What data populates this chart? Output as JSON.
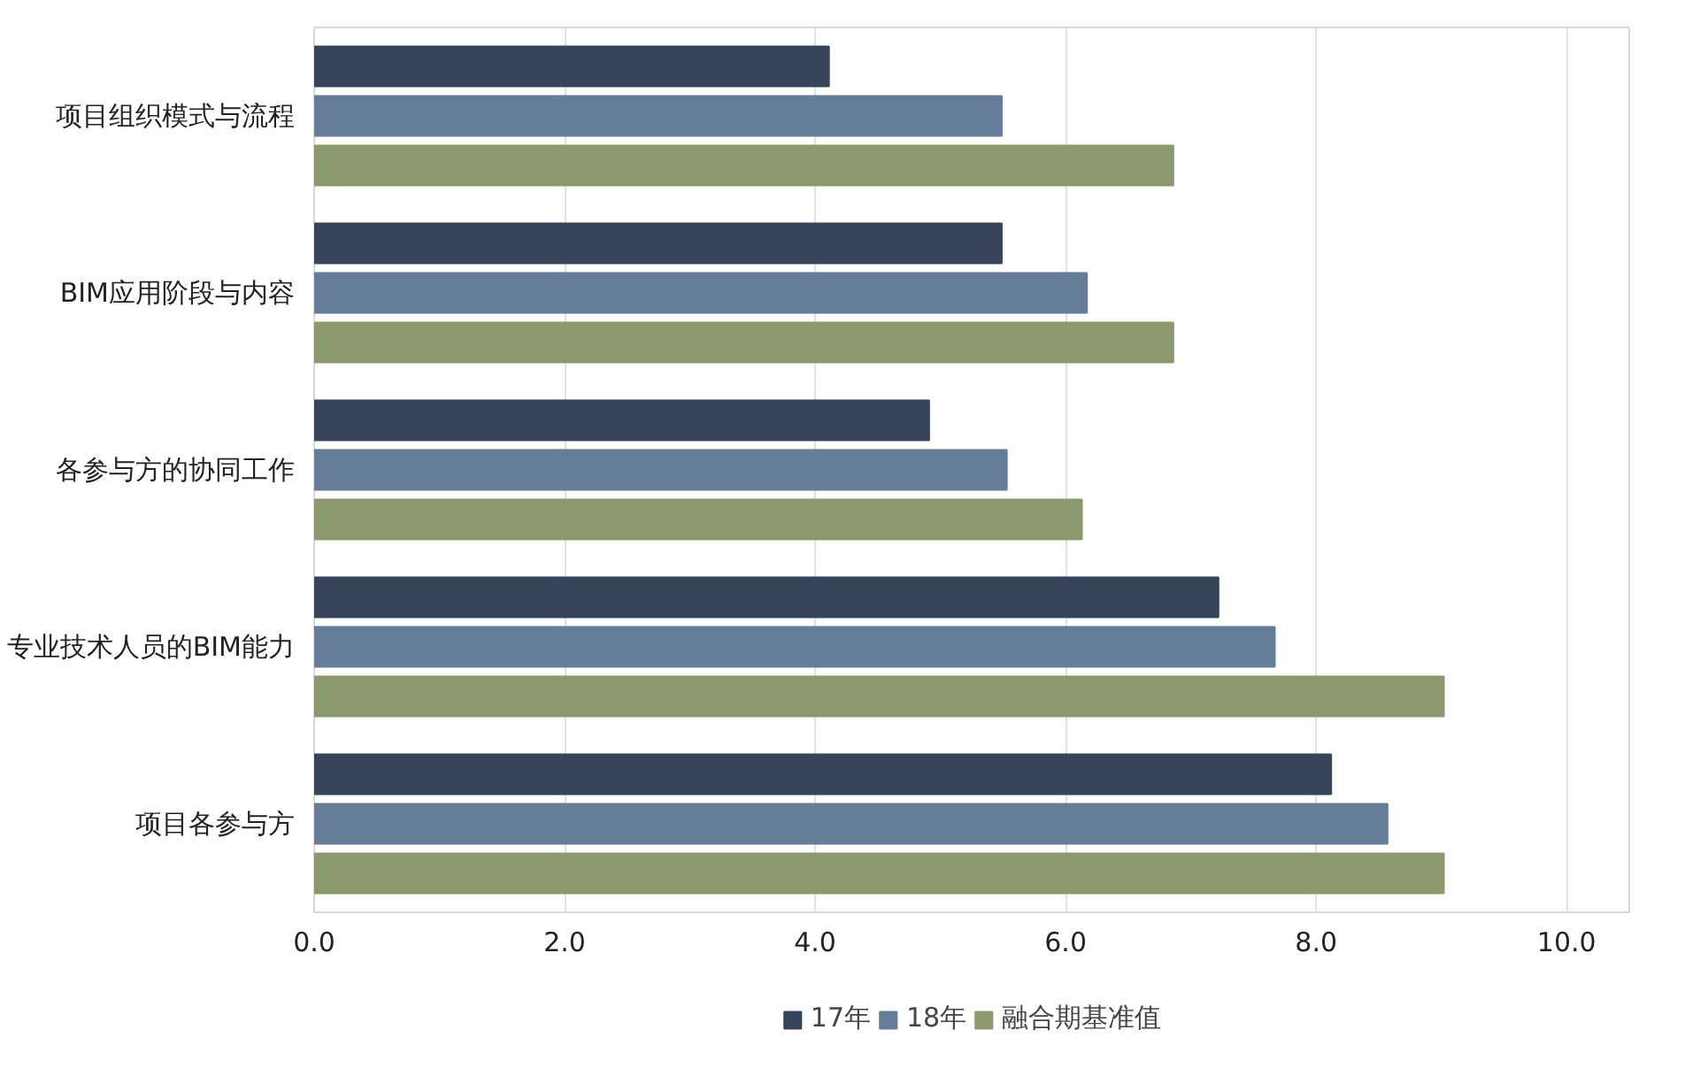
{
  "chart_data": {
    "type": "bar",
    "orientation": "horizontal",
    "categories": [
      "项目组织模式与流程",
      "BIM应用阶段与内容",
      "各参与方的协同工作",
      "专业技术人员的BIM能力",
      "项目各参与方"
    ],
    "series": [
      {
        "name": "17年",
        "color": "#38445a",
        "values": [
          4.11,
          5.49,
          4.91,
          7.22,
          8.12
        ]
      },
      {
        "name": "18年",
        "color": "#667d9a",
        "values": [
          5.49,
          6.17,
          5.53,
          7.67,
          8.57
        ]
      },
      {
        "name": "融合期基准值",
        "color": "#8a9a6c",
        "values": [
          6.86,
          6.86,
          6.13,
          9.02,
          9.02
        ]
      }
    ],
    "xlim": [
      0,
      10.5
    ],
    "xticks": [
      {
        "value": 0,
        "label": "0.0"
      },
      {
        "value": 2,
        "label": "2.0"
      },
      {
        "value": 4,
        "label": "4.0"
      },
      {
        "value": 6,
        "label": "6.0"
      },
      {
        "value": 8,
        "label": "8.0"
      },
      {
        "value": 10,
        "label": "10.0"
      }
    ],
    "grid": "x",
    "legend": "bottom"
  }
}
